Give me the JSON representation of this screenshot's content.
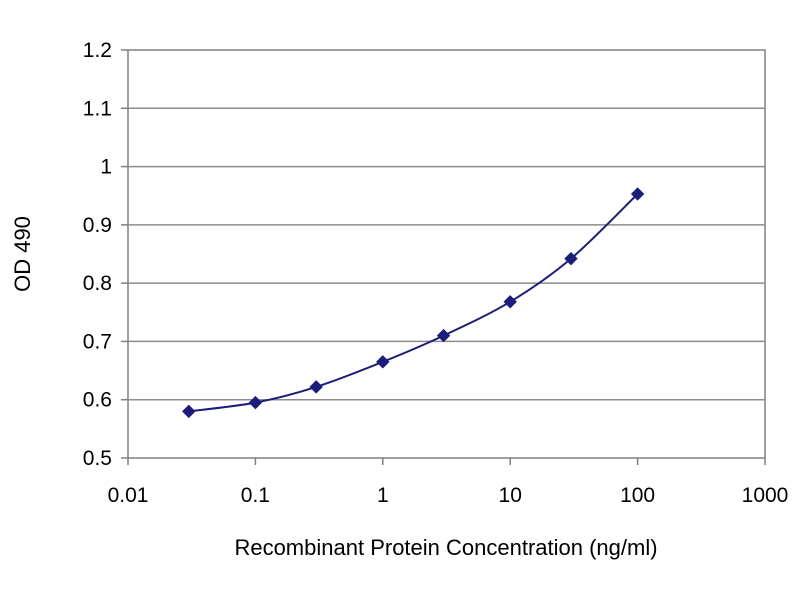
{
  "chart_data": {
    "type": "line",
    "xscale": "log",
    "xlabel": "Recombinant Protein Concentration (ng/ml)",
    "ylabel": "OD 490",
    "xlim": [
      0.01,
      1000
    ],
    "ylim": [
      0.5,
      1.2
    ],
    "xticks": [
      "0.01",
      "0.1",
      "1",
      "10",
      "100",
      "1000"
    ],
    "yticks": [
      "0.5",
      "0.6",
      "0.7",
      "0.8",
      "0.9",
      "1",
      "1.1",
      "1.2"
    ],
    "grid": "horizontal",
    "series": [
      {
        "color": "#1c1c7a",
        "marker": "diamond",
        "x": [
          0.03,
          0.1,
          0.3,
          1,
          3,
          10,
          30,
          100
        ],
        "y": [
          0.58,
          0.595,
          0.622,
          0.665,
          0.71,
          0.768,
          0.842,
          0.953
        ]
      }
    ]
  }
}
